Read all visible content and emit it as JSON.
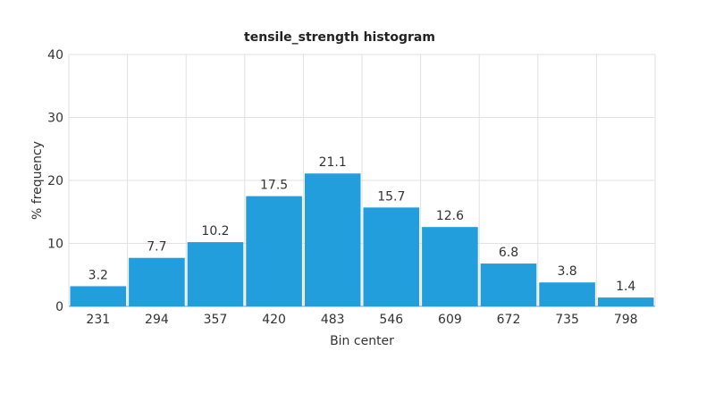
{
  "chart_data": {
    "type": "bar",
    "title": "tensile_strength histogram",
    "xlabel": "Bin center",
    "ylabel": "% frequency",
    "categories": [
      "231",
      "294",
      "357",
      "420",
      "483",
      "546",
      "609",
      "672",
      "735",
      "798"
    ],
    "values": [
      3.2,
      7.7,
      10.2,
      17.5,
      21.1,
      15.7,
      12.6,
      6.8,
      3.8,
      1.4
    ],
    "value_labels": [
      "3.2",
      "7.7",
      "10.2",
      "17.5",
      "21.1",
      "15.7",
      "12.6",
      "6.8",
      "3.8",
      "1.4"
    ],
    "ylim": [
      0,
      40
    ],
    "yticks": [
      0,
      10,
      20,
      30,
      40
    ],
    "grid": true,
    "bar_color": "#229edd"
  }
}
